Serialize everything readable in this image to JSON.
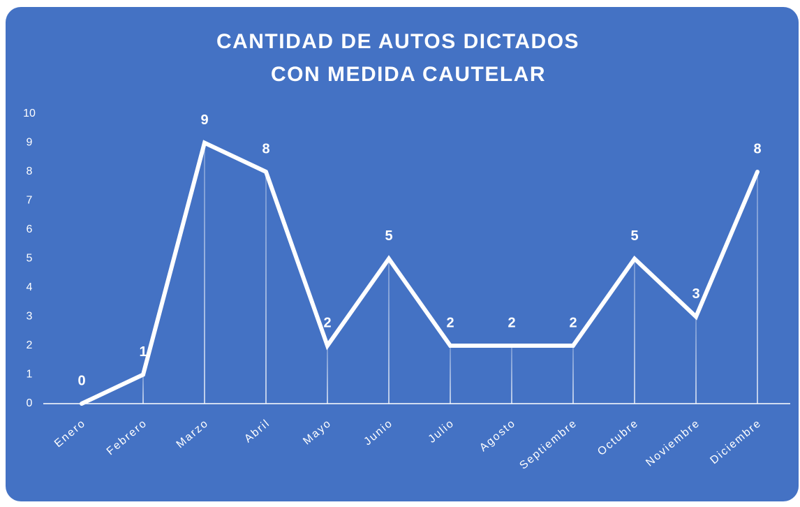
{
  "chart_data": {
    "type": "line",
    "title": [
      "CANTIDAD DE AUTOS DICTADOS",
      "CON MEDIDA CAUTELAR"
    ],
    "categories": [
      "Enero",
      "Febrero",
      "Marzo",
      "Abril",
      "Mayo",
      "Junio",
      "Julio",
      "Agosto",
      "Septiembre",
      "Octubre",
      "Noviembre",
      "Diciembre"
    ],
    "values": [
      0,
      1,
      9,
      8,
      2,
      5,
      2,
      2,
      2,
      5,
      3,
      8
    ],
    "color": "#ffffff",
    "background": "#4472c4",
    "ylim": [
      0,
      10
    ],
    "yticks": [
      0,
      1,
      2,
      3,
      4,
      5,
      6,
      7,
      8,
      9,
      10
    ],
    "drop_lines": true
  }
}
